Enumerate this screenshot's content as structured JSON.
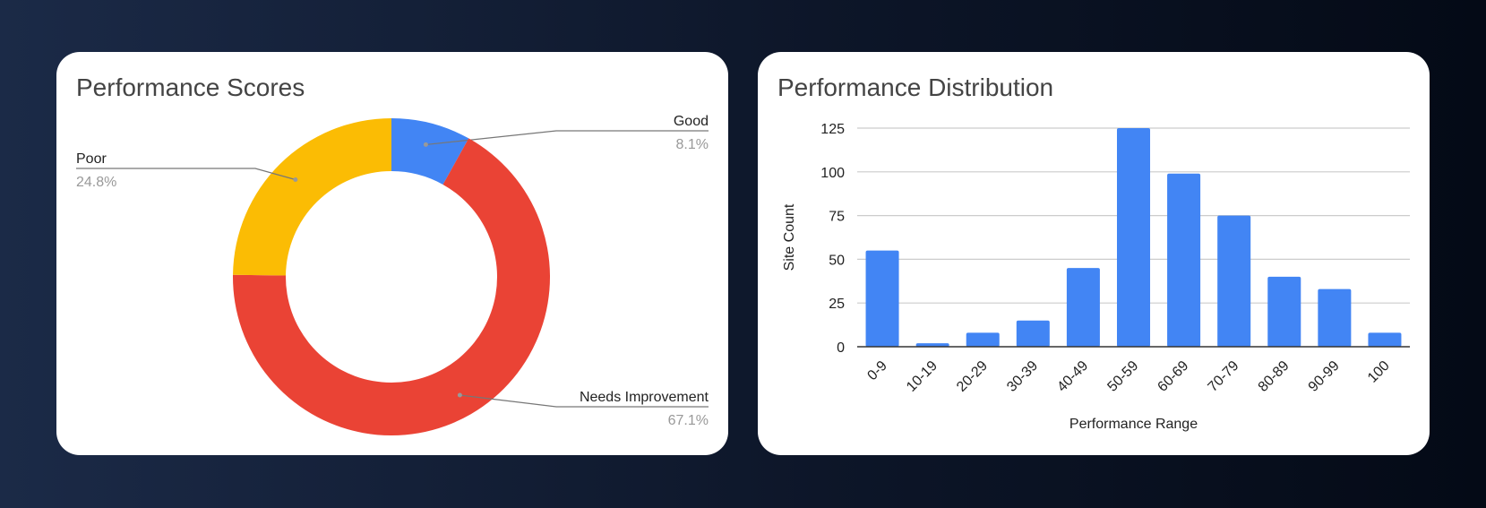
{
  "chart_data": [
    {
      "type": "pie",
      "title": "Performance Scores",
      "donut": true,
      "slices": [
        {
          "label": "Good",
          "value": 8.1,
          "display": "8.1%",
          "color": "#4285f4"
        },
        {
          "label": "Needs Improvement",
          "value": 67.1,
          "display": "67.1%",
          "color": "#ea4335"
        },
        {
          "label": "Poor",
          "value": 24.8,
          "display": "24.8%",
          "color": "#fbbc04"
        }
      ]
    },
    {
      "type": "bar",
      "title": "Performance Distribution",
      "xlabel": "Performance Range",
      "ylabel": "Site Count",
      "categories": [
        "0-9",
        "10-19",
        "20-29",
        "30-39",
        "40-49",
        "50-59",
        "60-69",
        "70-79",
        "80-89",
        "90-99",
        "100"
      ],
      "values": [
        55,
        2,
        8,
        15,
        45,
        125,
        99,
        75,
        40,
        33,
        8
      ],
      "ylim": [
        0,
        125
      ],
      "yticks": [
        "0",
        "25",
        "50",
        "75",
        "100",
        "125"
      ],
      "grid": true,
      "color": "#4285f4"
    }
  ]
}
